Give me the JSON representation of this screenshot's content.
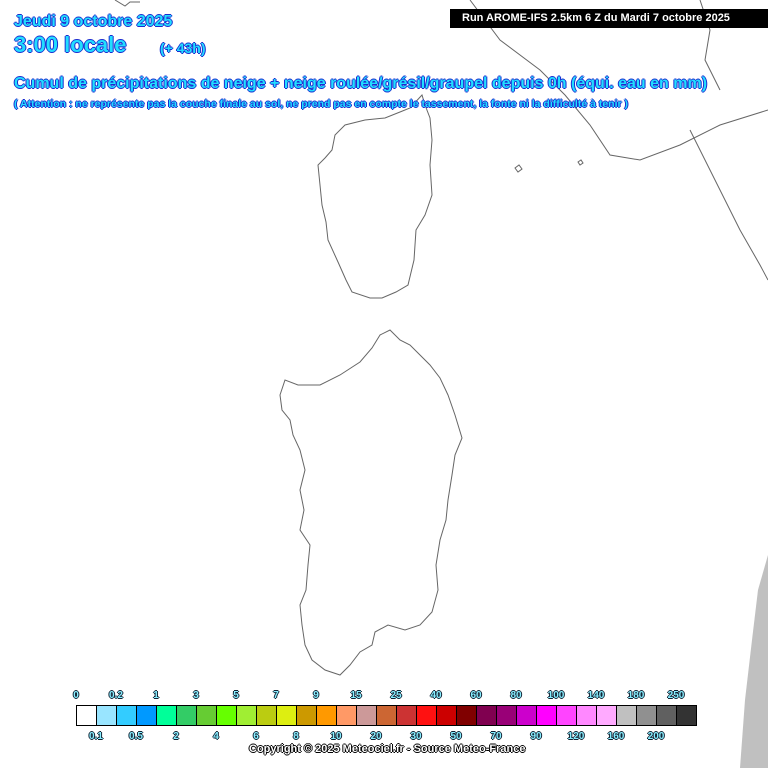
{
  "header": {
    "date": "Jeudi 9 octobre 2025",
    "hour": "3:00 locale",
    "lead": "(+ 43h)",
    "title": "Cumul de précipitations de neige + neige roulée/grésil/graupel depuis 0h (équi. eau en mm)",
    "note": "( Attention : ne représente pas la couche finale au sol, ne prend pas en compte le tassement, la fonte ni la difficulté à tenir )",
    "run": "Run AROME-IFS 2.5km 6 Z du Mardi 7 octobre 2025"
  },
  "legend": {
    "top_labels": [
      "0",
      "0.2",
      "1",
      "3",
      "5",
      "7",
      "9",
      "15",
      "25",
      "40",
      "60",
      "80",
      "100",
      "140",
      "180",
      "250"
    ],
    "bottom_labels": [
      "0.1",
      "0.5",
      "2",
      "4",
      "6",
      "8",
      "10",
      "20",
      "30",
      "50",
      "70",
      "90",
      "120",
      "160",
      "200"
    ],
    "colors": [
      "#ffffff",
      "#99e5ff",
      "#33ccff",
      "#0099ff",
      "#00ff99",
      "#33cc66",
      "#66cc33",
      "#66ff00",
      "#a0ee33",
      "#bbcc11",
      "#ddee11",
      "#cc9900",
      "#ff9900",
      "#ff9966",
      "#cc9999",
      "#cc6633",
      "#cc3333",
      "#ff1111",
      "#cc0000",
      "#800000",
      "#800050",
      "#990077",
      "#cc00cc",
      "#ff00ff",
      "#ff44ff",
      "#ff88ff",
      "#ffaaff",
      "#c0c0c0",
      "#909090",
      "#606060",
      "#333333"
    ]
  },
  "copyright": "Copyright © 2025 Meteociel.fr - Source Meteo-France"
}
